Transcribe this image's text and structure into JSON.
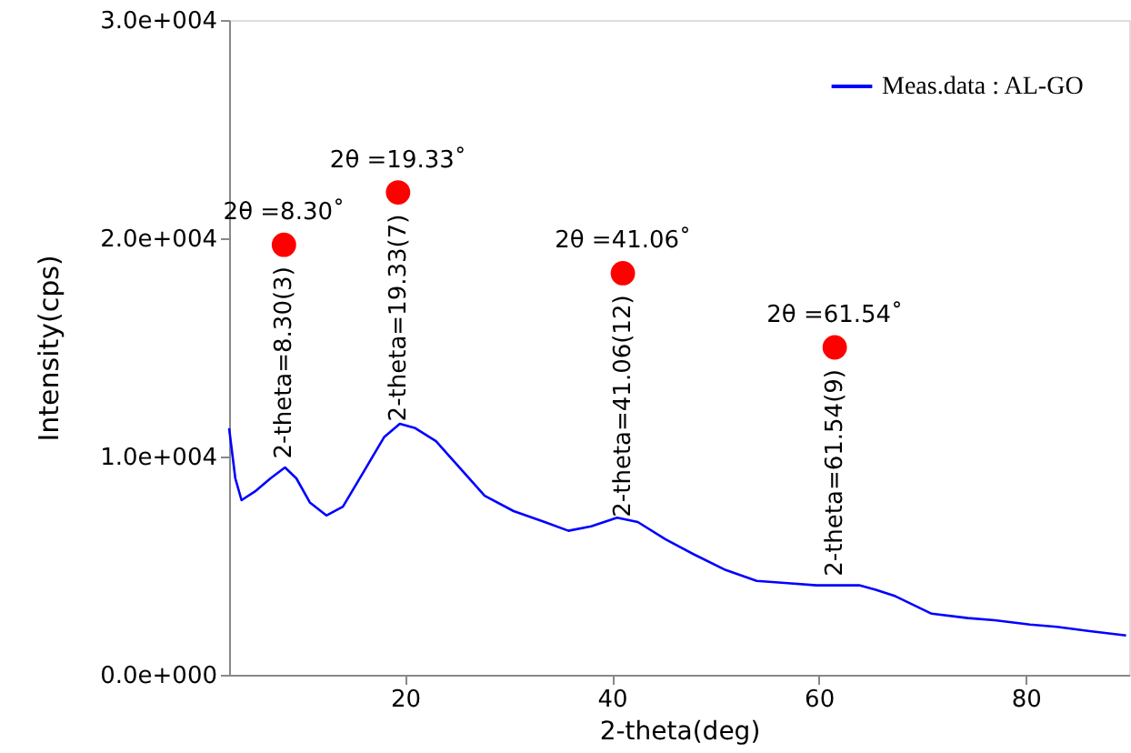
{
  "chart_data": {
    "type": "line",
    "xlabel": "2-theta(deg)",
    "ylabel": "Intensity(cps)",
    "xlim": [
      3,
      90
    ],
    "xticks": [
      20,
      40,
      60,
      80
    ],
    "ylim": [
      0,
      30000
    ],
    "yticks": [
      {
        "value": 0,
        "label": "0.0e+000"
      },
      {
        "value": 10000,
        "label": "1.0e+004"
      },
      {
        "value": 20000,
        "label": "2.0e+004"
      },
      {
        "value": 30000,
        "label": "3.0e+004"
      }
    ],
    "grid": false,
    "legend": "top right",
    "marker": "none",
    "line_style": "solid",
    "series": [
      {
        "name": "Meas.data : AL-GO",
        "color": "#0000ff",
        "x": [
          3.0,
          3.6,
          4.2,
          5.5,
          7.0,
          8.4,
          9.5,
          10.8,
          12.4,
          14.0,
          16.0,
          18.0,
          19.5,
          21.0,
          23.0,
          24.7,
          27.7,
          30.5,
          33.5,
          35.8,
          38.0,
          40.5,
          42.5,
          45.2,
          48.0,
          51.0,
          54.0,
          57.0,
          59.8,
          62.0,
          63.9,
          65.5,
          67.4,
          70.9,
          74.4,
          77.0,
          80.4,
          83.0,
          86.2,
          89.7
        ],
        "values": [
          11300,
          9000,
          8000,
          8400,
          9000,
          9500,
          9000,
          7900,
          7300,
          7700,
          9300,
          10900,
          11500,
          11300,
          10700,
          9800,
          8200,
          7500,
          7000,
          6600,
          6800,
          7200,
          7000,
          6200,
          5500,
          4800,
          4300,
          4200,
          4100,
          4100,
          4100,
          3900,
          3600,
          2800,
          2600,
          2500,
          2300,
          2200,
          2000,
          1800
        ]
      },
      {
        "color": "#ff0000",
        "type": "scatter",
        "marker": "circle",
        "x": [
          8.3,
          19.33,
          41.06,
          61.54
        ],
        "values": [
          19700,
          22100,
          18400,
          15000
        ],
        "value_labels": [
          "2θ =8.30˚",
          "2θ =19.33˚",
          "2θ =41.06˚",
          "2θ =61.54˚"
        ]
      }
    ],
    "annotations": [
      "2-theta=8.30(3)",
      "2-theta=19.33(7)",
      "2-theta=41.06(12)",
      "2-theta=61.54(9)"
    ]
  }
}
